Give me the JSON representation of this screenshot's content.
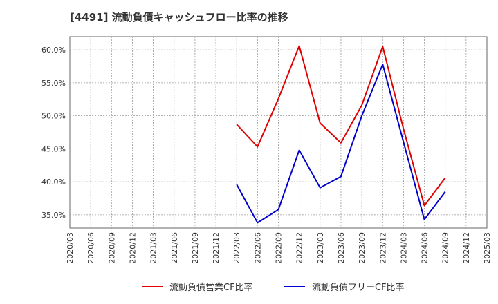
{
  "title": "[4491]  流動負債キャッシュフロー比率の推移",
  "colors": {
    "series1": "#e00000",
    "series2": "#0000cc",
    "grid": "#999999",
    "frame": "#666666",
    "background": "#ffffff"
  },
  "chart_data": {
    "type": "line",
    "title": "[4491]  流動負債キャッシュフロー比率の推移",
    "xlabel": "",
    "ylabel": "",
    "x": [
      "2020/03",
      "2020/06",
      "2020/09",
      "2020/12",
      "2021/03",
      "2021/06",
      "2021/09",
      "2021/12",
      "2022/03",
      "2022/06",
      "2022/09",
      "2022/12",
      "2023/03",
      "2023/06",
      "2023/09",
      "2023/12",
      "2024/03",
      "2024/06",
      "2024/09",
      "2024/12",
      "2025/03"
    ],
    "ylim": [
      33.0,
      62.0
    ],
    "yticks": [
      35.0,
      40.0,
      45.0,
      50.0,
      55.0,
      60.0
    ],
    "ytick_labels": [
      "35.0%",
      "40.0%",
      "45.0%",
      "50.0%",
      "55.0%",
      "60.0%"
    ],
    "grid": true,
    "legend_position": "bottom",
    "series": [
      {
        "name": "流動負債営業CF比率",
        "values": [
          null,
          null,
          null,
          null,
          null,
          null,
          null,
          null,
          48.7,
          45.3,
          52.6,
          60.6,
          48.9,
          45.9,
          51.6,
          60.5,
          48.0,
          36.4,
          40.6,
          null,
          null
        ]
      },
      {
        "name": "流動負債フリーCF比率",
        "values": [
          null,
          null,
          null,
          null,
          null,
          null,
          null,
          null,
          39.6,
          33.8,
          35.8,
          44.8,
          39.1,
          40.8,
          50.0,
          57.8,
          46.0,
          34.3,
          38.5,
          null,
          null
        ]
      }
    ]
  }
}
